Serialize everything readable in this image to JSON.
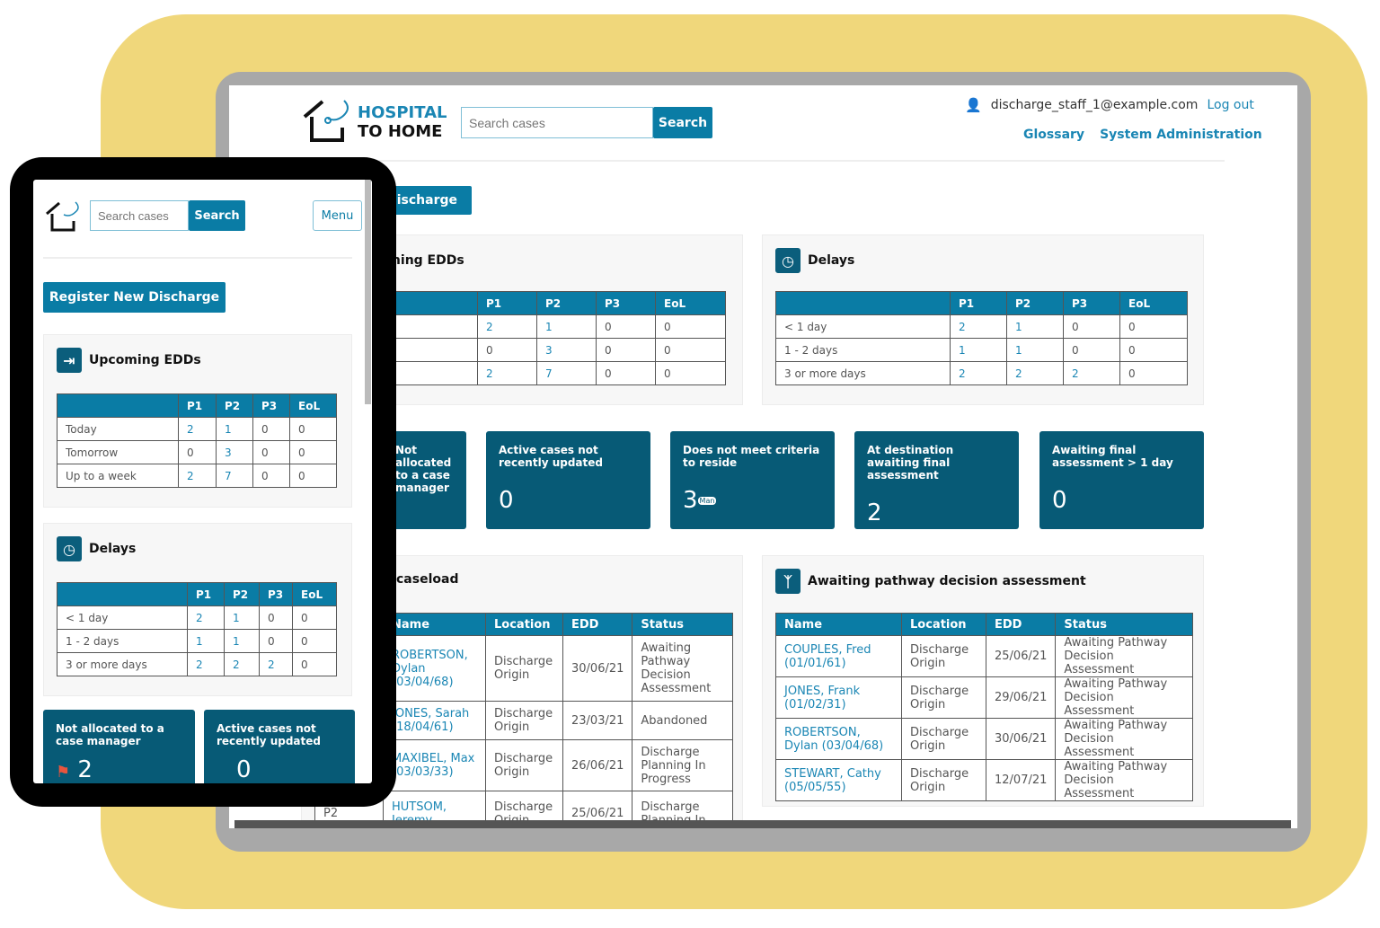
{
  "app": {
    "logo_line1": "HOSPITAL",
    "logo_line2": "TO HOME",
    "search_placeholder": "Search cases",
    "search_label": "Search",
    "menu_label": "Menu"
  },
  "user": {
    "email": "discharge_staff_1@example.com",
    "logout": "Log out"
  },
  "nav": {
    "glossary": "Glossary",
    "sysadmin": "System Administration"
  },
  "register_label": "Register New Discharge",
  "laptop_register_visible": "Discharge",
  "colors": {
    "accent": "#0a7ca5",
    "tile": "#075a76",
    "frame": "#f0d77b",
    "link": "#1a86b4",
    "flag": "#e8553e"
  },
  "edds": {
    "title": "Upcoming EDDs",
    "headers": [
      "",
      "P1",
      "P2",
      "P3",
      "EoL"
    ],
    "rows": [
      [
        "Today",
        "2",
        "1",
        "0",
        "0"
      ],
      [
        "Tomorrow",
        "0",
        "3",
        "0",
        "0"
      ],
      [
        "Up to a week",
        "2",
        "7",
        "0",
        "0"
      ]
    ]
  },
  "delays": {
    "title": "Delays",
    "headers": [
      "",
      "P1",
      "P2",
      "P3",
      "EoL"
    ],
    "rows": [
      [
        "< 1 day",
        "2",
        "1",
        "0",
        "0"
      ],
      [
        "1 - 2 days",
        "1",
        "1",
        "0",
        "0"
      ],
      [
        "3 or more days",
        "2",
        "2",
        "2",
        "0"
      ]
    ]
  },
  "tiles": [
    {
      "title": "Not allocated to a case manager",
      "value": "2",
      "icon": "flag-icon"
    },
    {
      "title": "Active cases not recently updated",
      "value": "0"
    },
    {
      "title": "Does not meet criteria to reside",
      "value": "3",
      "badge": "Man"
    },
    {
      "title": "At destination awaiting final assessment",
      "value": "2"
    },
    {
      "title": "Awaiting final assessment > 1 day",
      "value": "0"
    }
  ],
  "caseload": {
    "title": "caseload",
    "headers": [
      "",
      "Name",
      "Location",
      "EDD",
      "Status"
    ],
    "rows": [
      [
        "",
        "ROBERTSON, Dylan (03/04/68)",
        "Discharge Origin",
        "30/06/21",
        "Awaiting Pathway Decision Assessment"
      ],
      [
        "",
        "JONES, Sarah (18/04/61)",
        "Discharge Origin",
        "23/03/21",
        "Abandoned"
      ],
      [
        "",
        "MAXIBEL, Max (03/03/33)",
        "Discharge Origin",
        "26/06/21",
        "Discharge Planning In Progress"
      ],
      [
        "P2",
        "HUTSOM, Jeremy",
        "Discharge Origin",
        "25/06/21",
        "Discharge Planning In"
      ]
    ]
  },
  "pathway": {
    "title": "Awaiting pathway decision assessment",
    "headers": [
      "Name",
      "Location",
      "EDD",
      "Status"
    ],
    "rows": [
      [
        "COUPLES, Fred (01/01/61)",
        "Discharge Origin",
        "25/06/21",
        "Awaiting Pathway Decision Assessment"
      ],
      [
        "JONES, Frank (01/02/31)",
        "Discharge Origin",
        "29/06/21",
        "Awaiting Pathway Decision Assessment"
      ],
      [
        "ROBERTSON, Dylan (03/04/68)",
        "Discharge Origin",
        "30/06/21",
        "Awaiting Pathway Decision Assessment"
      ],
      [
        "STEWART, Cathy (05/05/55)",
        "Discharge Origin",
        "12/07/21",
        "Awaiting Pathway Decision Assessment"
      ]
    ]
  }
}
